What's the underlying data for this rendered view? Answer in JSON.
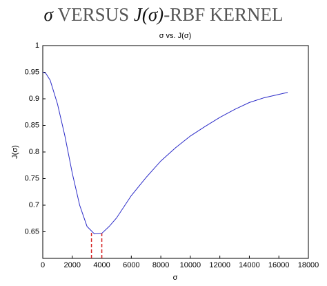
{
  "slide": {
    "title_parts": [
      "σ",
      "VERSUS",
      "J(σ)",
      "-RBF KERNEL"
    ]
  },
  "chart_data": {
    "type": "line",
    "title": "σ vs. J(σ)",
    "x_label": "σ",
    "y_label": "J(σ)",
    "series": [
      {
        "name": "J(σ)",
        "color": "#2b2bc8",
        "x": [
          0,
          200,
          500,
          1000,
          1500,
          2000,
          2500,
          3000,
          3500,
          4000,
          4500,
          5000,
          6000,
          7000,
          8000,
          9000,
          10000,
          11000,
          12000,
          13000,
          14000,
          15000,
          16600
        ],
        "values": [
          0.95,
          0.948,
          0.935,
          0.89,
          0.83,
          0.76,
          0.7,
          0.66,
          0.646,
          0.647,
          0.66,
          0.676,
          0.718,
          0.752,
          0.783,
          0.808,
          0.83,
          0.848,
          0.865,
          0.88,
          0.893,
          0.902,
          0.912
        ]
      }
    ],
    "markers": {
      "color": "#d42020",
      "x": [
        3300,
        4000
      ],
      "values": [
        0.648,
        0.647
      ]
    },
    "xlim": [
      0,
      18000
    ],
    "xticks": [
      0,
      2000,
      4000,
      6000,
      8000,
      10000,
      12000,
      14000,
      16000,
      18000
    ],
    "ylim": [
      0.6,
      1
    ],
    "yticks": [
      0.65,
      0.7,
      0.75,
      0.8,
      0.85,
      0.9,
      0.95,
      1
    ]
  }
}
